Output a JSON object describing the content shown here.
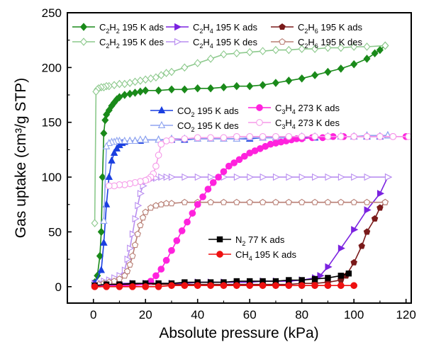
{
  "chart_data": {
    "type": "scatter",
    "title": "",
    "xlabel": "Absolute pressure (kPa)",
    "ylabel": "Gas uptake (cm³/g STP)",
    "xlim": [
      -10,
      122
    ],
    "ylim": [
      -15,
      250
    ],
    "xticks": [
      0,
      20,
      40,
      60,
      80,
      100,
      120
    ],
    "yticks": [
      0,
      50,
      100,
      150,
      200,
      250
    ],
    "grid": false,
    "legend_placement": "in-plot, multiple groups",
    "series": [
      {
        "name": "C2H2 195 K ads",
        "label_main": "C",
        "label_sub1": "2",
        "label_mid": "H",
        "label_sub2": "2",
        "label_tail": " 195 K ads",
        "color": "#1a8a1a",
        "marker": "diamond",
        "filled": true,
        "legend_group": 0,
        "x": [
          0.5,
          1.5,
          2.5,
          3,
          3.5,
          4,
          4.5,
          5,
          6,
          7,
          8,
          9,
          10,
          12,
          14,
          16,
          18,
          20,
          25,
          30,
          35,
          40,
          45,
          50,
          55,
          60,
          65,
          70,
          75,
          80,
          85,
          90,
          95,
          100,
          105,
          108,
          110,
          112
        ],
        "y": [
          4,
          10,
          28,
          50,
          100,
          140,
          152,
          157,
          161,
          165,
          168,
          171,
          173,
          175,
          176,
          177,
          178,
          179,
          179,
          180,
          180,
          181,
          181,
          182,
          183,
          183,
          184,
          186,
          188,
          190,
          193,
          196,
          199,
          203,
          208,
          213,
          216,
          220
        ]
      },
      {
        "name": "C2H2 195 K des",
        "label_main": "C",
        "label_sub1": "2",
        "label_mid": "H",
        "label_sub2": "2",
        "label_tail": " 195 K des",
        "color": "#8cc98c",
        "marker": "diamond",
        "filled": false,
        "legend_group": 0,
        "x": [
          112,
          105,
          100,
          95,
          90,
          85,
          80,
          75,
          70,
          65,
          60,
          55,
          50,
          45,
          40,
          35,
          30,
          28,
          26,
          24,
          22,
          20,
          18,
          16,
          14,
          12,
          10,
          8,
          6,
          5,
          4,
          3,
          2,
          1.5,
          1,
          0.5
        ],
        "y": [
          220,
          219,
          219,
          218,
          218,
          217,
          217,
          216,
          216,
          215,
          214,
          213,
          212,
          208,
          204,
          200,
          196,
          195,
          193,
          191,
          190,
          189,
          188,
          187,
          186,
          185,
          185,
          184,
          183,
          183,
          182,
          182,
          181,
          180,
          178,
          58
        ]
      },
      {
        "name": "C2H4 195 K ads",
        "label_main": "C",
        "label_sub1": "2",
        "label_mid": "H",
        "label_sub2": "4",
        "label_tail": " 195 K ads",
        "color": "#7b22e0",
        "marker": "triangle-right",
        "filled": true,
        "legend_group": 1,
        "x": [
          0.5,
          5,
          10,
          15,
          20,
          25,
          30,
          35,
          40,
          45,
          50,
          55,
          60,
          65,
          70,
          75,
          80,
          85,
          87,
          90,
          95,
          100,
          105,
          110,
          113
        ],
        "y": [
          3,
          3,
          3,
          3,
          3,
          3,
          3,
          3,
          4,
          4,
          4,
          4,
          4,
          5,
          5,
          5,
          6,
          8,
          10,
          18,
          35,
          52,
          70,
          85,
          100
        ]
      },
      {
        "name": "C2H4 195 K des",
        "label_main": "C",
        "label_sub1": "2",
        "label_mid": "H",
        "label_sub2": "4",
        "label_tail": " 195 K des",
        "color": "#b98ef0",
        "marker": "triangle-right",
        "filled": false,
        "legend_group": 1,
        "x": [
          113,
          105,
          100,
          95,
          90,
          85,
          80,
          75,
          70,
          65,
          60,
          55,
          50,
          45,
          40,
          35,
          30,
          28,
          26,
          24,
          22,
          20,
          19,
          18,
          17,
          16,
          15,
          14,
          13,
          12,
          10,
          8,
          6,
          4,
          2,
          0.5
        ],
        "y": [
          100,
          100,
          100,
          100,
          100,
          100,
          100,
          100,
          100,
          100,
          100,
          100,
          100,
          100,
          100,
          100,
          100,
          100,
          100,
          99,
          98,
          96,
          92,
          85,
          74,
          62,
          48,
          35,
          25,
          15,
          10,
          8,
          6,
          5,
          4,
          2
        ]
      },
      {
        "name": "C2H6 195 K ads",
        "label_main": "C",
        "label_sub1": "2",
        "label_mid": "H",
        "label_sub2": "6",
        "label_tail": " 195 K ads",
        "color": "#7a1a1a",
        "marker": "pentagon",
        "filled": true,
        "legend_group": 2,
        "x": [
          0.5,
          5,
          10,
          15,
          20,
          25,
          30,
          35,
          40,
          45,
          50,
          55,
          60,
          65,
          70,
          75,
          80,
          85,
          90,
          95,
          97,
          100,
          103,
          105,
          108,
          110,
          112
        ],
        "y": [
          1,
          2,
          2,
          2,
          2,
          2,
          2,
          2,
          2,
          2,
          2,
          2,
          2,
          2,
          2,
          2,
          3,
          3,
          4,
          6,
          10,
          22,
          37,
          50,
          62,
          72,
          77
        ]
      },
      {
        "name": "C2H6 195 K des",
        "label_main": "C",
        "label_sub1": "2",
        "label_mid": "H",
        "label_sub2": "6",
        "label_tail": " 195 K des",
        "color": "#b87e74",
        "marker": "pentagon",
        "filled": false,
        "legend_group": 2,
        "x": [
          112,
          105,
          100,
          95,
          90,
          85,
          80,
          75,
          70,
          65,
          60,
          55,
          50,
          45,
          40,
          35,
          30,
          28,
          26,
          24,
          22,
          20,
          19,
          18,
          17,
          16,
          15,
          14,
          13,
          12,
          10,
          8,
          6,
          4,
          2,
          0.5
        ],
        "y": [
          77,
          77,
          77,
          77,
          77,
          77,
          77,
          77,
          77,
          77,
          77,
          77,
          77,
          77,
          77,
          77,
          76,
          76,
          75,
          74,
          72,
          68,
          63,
          56,
          48,
          38,
          28,
          20,
          14,
          10,
          7,
          5,
          4,
          3,
          2,
          1
        ]
      },
      {
        "name": "CO2 195 K ads",
        "label_main": "CO",
        "label_sub1": "2",
        "label_mid": "",
        "label_sub2": "",
        "label_tail": " 195 K ads",
        "color": "#1a3fe0",
        "marker": "triangle-up",
        "filled": true,
        "legend_group": 3,
        "x": [
          0.5,
          3,
          4,
          5,
          6,
          7,
          8,
          9,
          10,
          11,
          12,
          14,
          16,
          18,
          20,
          25,
          30,
          35,
          40,
          45,
          50,
          55,
          60,
          65,
          70,
          75,
          80,
          85,
          90,
          95,
          100,
          105,
          110,
          113
        ],
        "y": [
          3,
          15,
          40,
          75,
          100,
          115,
          122,
          126,
          129,
          131,
          132,
          133,
          133,
          133,
          134,
          134,
          134,
          134,
          135,
          135,
          135,
          135,
          135,
          136,
          136,
          136,
          136,
          136,
          137,
          137,
          137,
          137,
          137,
          138
        ]
      },
      {
        "name": "CO2 195 K des",
        "label_main": "CO",
        "label_sub1": "2",
        "label_mid": "",
        "label_sub2": "",
        "label_tail": " 195 K des",
        "color": "#8fa4f0",
        "marker": "triangle-up",
        "filled": false,
        "legend_group": 3,
        "x": [
          113,
          105,
          100,
          95,
          90,
          85,
          80,
          75,
          70,
          65,
          60,
          55,
          50,
          45,
          40,
          35,
          30,
          25,
          20,
          18,
          16,
          14,
          12,
          10,
          9,
          8,
          7,
          6,
          5,
          4
        ],
        "y": [
          138,
          138,
          137,
          137,
          137,
          137,
          137,
          136,
          136,
          136,
          136,
          135,
          135,
          135,
          135,
          135,
          135,
          134,
          134,
          134,
          133,
          133,
          133,
          133,
          133,
          132,
          132,
          131,
          128,
          60
        ]
      },
      {
        "name": "C3H4 273 K ads",
        "label_main": "C",
        "label_sub1": "3",
        "label_mid": "H",
        "label_sub2": "4",
        "label_tail": " 273 K ads",
        "color": "#ff22dd",
        "marker": "circle",
        "filled": true,
        "legend_group": 4,
        "x": [
          0.5,
          5,
          10,
          15,
          20,
          22,
          24,
          26,
          28,
          30,
          32,
          34,
          36,
          38,
          40,
          42,
          44,
          46,
          48,
          50,
          52,
          54,
          56,
          58,
          60,
          62,
          64,
          66,
          68,
          70,
          72,
          74,
          76,
          78,
          80,
          84,
          88,
          92,
          96,
          100,
          105,
          110,
          115,
          120
        ],
        "y": [
          1,
          1,
          1,
          1,
          2,
          5,
          10,
          16,
          24,
          33,
          42,
          51,
          59,
          67,
          75,
          82,
          89,
          95,
          100,
          105,
          110,
          113,
          116,
          119,
          122,
          124,
          126,
          128,
          130,
          131,
          132,
          133,
          134,
          135,
          135,
          136,
          136,
          137,
          137,
          137,
          137,
          137,
          137,
          137
        ]
      },
      {
        "name": "C3H4 273 K des",
        "label_main": "C",
        "label_sub1": "3",
        "label_mid": "H",
        "label_sub2": "4",
        "label_tail": " 273 K des",
        "color": "#f59ae8",
        "marker": "circle",
        "filled": false,
        "legend_group": 4,
        "x": [
          121,
          115,
          110,
          105,
          100,
          95,
          90,
          85,
          80,
          75,
          70,
          65,
          60,
          55,
          50,
          45,
          40,
          35,
          30,
          28,
          26,
          25,
          24,
          23,
          22,
          21,
          20,
          18,
          16,
          14,
          12,
          10,
          8,
          6
        ],
        "y": [
          137,
          137,
          137,
          137,
          137,
          137,
          137,
          137,
          137,
          137,
          137,
          137,
          137,
          137,
          136,
          136,
          136,
          135,
          134,
          133,
          130,
          120,
          110,
          103,
          100,
          98,
          97,
          96,
          95,
          94,
          93,
          93,
          92,
          92
        ]
      },
      {
        "name": "N2 77 K ads",
        "label_main": "N",
        "label_sub1": "2",
        "label_mid": "",
        "label_sub2": "",
        "label_tail": " 77 K ads",
        "color": "#000000",
        "marker": "square",
        "filled": true,
        "legend_group": 5,
        "x": [
          0.5,
          5,
          10,
          15,
          20,
          25,
          30,
          35,
          40,
          45,
          50,
          55,
          60,
          65,
          70,
          75,
          80,
          85,
          90,
          95,
          98
        ],
        "y": [
          1,
          2,
          2,
          3,
          3,
          3,
          3,
          4,
          4,
          4,
          4,
          5,
          5,
          5,
          5,
          6,
          6,
          7,
          8,
          10,
          12
        ]
      },
      {
        "name": "CH4 195 K ads",
        "label_main": "CH",
        "label_sub1": "4",
        "label_mid": "",
        "label_sub2": "",
        "label_tail": " 195 K ads",
        "color": "#ee1111",
        "marker": "circle",
        "filled": true,
        "legend_group": 5,
        "x": [
          0.5,
          5,
          10,
          15,
          20,
          25,
          30,
          35,
          40,
          45,
          50,
          55,
          60,
          65,
          70,
          75,
          80,
          85,
          90,
          95,
          100
        ],
        "y": [
          0,
          0,
          0,
          0,
          0,
          0,
          1,
          1,
          1,
          1,
          1,
          1,
          1,
          1,
          1,
          1,
          1,
          1,
          1,
          1,
          1
        ]
      }
    ]
  }
}
